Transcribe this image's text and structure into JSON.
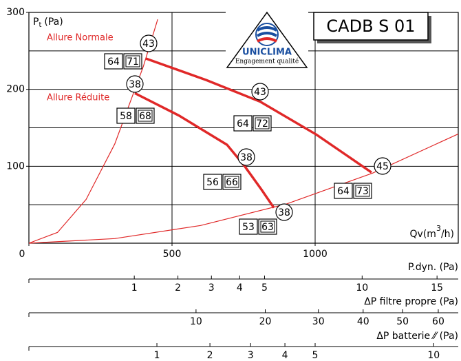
{
  "chart_data": {
    "type": "line",
    "title": "CADB S 01",
    "logo": {
      "name": "UNICLIMA",
      "tagline": "Engagement qualité"
    },
    "y_label": {
      "main": "P",
      "sub": "t",
      "unit": "(Pa)"
    },
    "x_label": {
      "main": "Qv(m",
      "sup": "3",
      "end": "/h)"
    },
    "xlim": [
      0,
      1500
    ],
    "xticks": [
      0,
      500,
      1000
    ],
    "ylim": [
      0,
      300
    ],
    "yticks": [
      100,
      200,
      300
    ],
    "grid_x": [
      500,
      1000
    ],
    "grid_y": [
      50,
      100,
      150,
      200,
      250
    ],
    "series": [
      {
        "name": "Allure Normale",
        "color": "#e02828",
        "width": 3.5,
        "x": [
          409,
          620,
          808,
          1005,
          1197
        ],
        "values": [
          240,
          212,
          184,
          141,
          92
        ]
      },
      {
        "name": "Allure Réduite",
        "color": "#e02828",
        "width": 3.5,
        "x": [
          370,
          524,
          692,
          752,
          812,
          856
        ],
        "values": [
          195,
          166,
          128,
          101,
          70,
          46
        ]
      }
    ],
    "system_curves": [
      {
        "color": "#e02828",
        "x": [
          0,
          100,
          200,
          300,
          400,
          450
        ],
        "values": [
          0,
          14,
          57,
          129,
          230,
          291
        ]
      },
      {
        "color": "#e02828",
        "x": [
          0,
          300,
          600,
          900,
          1200,
          1500
        ],
        "values": [
          0,
          6,
          23,
          51,
          91,
          142
        ]
      }
    ],
    "circle_labels": [
      "43",
      "38",
      "43",
      "38",
      "45",
      "38"
    ],
    "box_labels": [
      [
        "64",
        "71"
      ],
      [
        "58",
        "68"
      ],
      [
        "64",
        "72"
      ],
      [
        "56",
        "66"
      ],
      [
        "64",
        "73"
      ],
      [
        "53",
        "63"
      ]
    ],
    "aux_axes": [
      {
        "label": "P.dyn. (Pa)",
        "scale": "sqrt",
        "xlim": [
          0,
          16.6
        ],
        "xticks": [
          1,
          2,
          3,
          4,
          5,
          10,
          15
        ]
      },
      {
        "label": "ΔP filtre propre (Pa)",
        "scale": "sqrt",
        "xlim": [
          0,
          66
        ],
        "xticks": [
          10,
          20,
          30,
          40,
          50,
          60
        ]
      },
      {
        "label": "ΔP batterie ⁄⁄ (Pa)",
        "scale": "sqrt",
        "xlim": [
          0,
          11.25
        ],
        "xticks": [
          1,
          2,
          3,
          4,
          5,
          10
        ]
      }
    ]
  }
}
